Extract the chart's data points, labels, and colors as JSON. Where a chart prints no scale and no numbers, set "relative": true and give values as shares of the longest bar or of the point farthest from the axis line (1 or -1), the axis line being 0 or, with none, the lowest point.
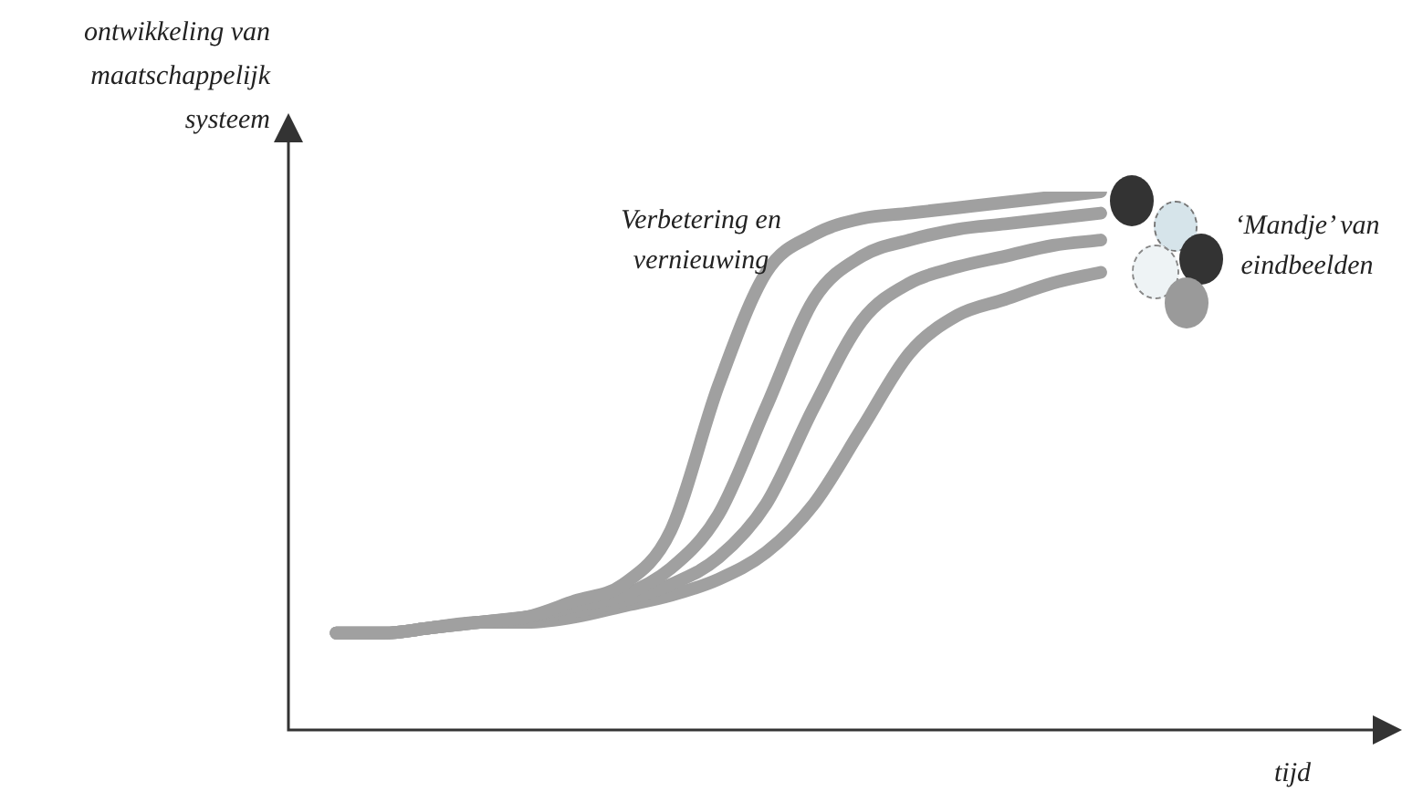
{
  "chart_data": {
    "type": "line",
    "relative": true,
    "ylabel": "ontwikkeling van maatschappelijk systeem",
    "xlabel": "tijd",
    "annotations": [
      "Verbetering en vernieuwing",
      "‘Mandje’ van eindbeelden"
    ],
    "categories": [
      null,
      null,
      null,
      null,
      null,
      null,
      null,
      null,
      null,
      null,
      null,
      null,
      null,
      null,
      null,
      null,
      null,
      null,
      null,
      null,
      null,
      null,
      null,
      null
    ],
    "series": [
      {
        "color": "#a0a0a0",
        "values": [
          null,
          0.18,
          0.18,
          0.19,
          0.2,
          0.21,
          0.24,
          0.27,
          0.37,
          0.64,
          0.85,
          0.92,
          0.95,
          0.96,
          0.97,
          0.98,
          0.99,
          1,
          null,
          null,
          null,
          null,
          null,
          null
        ]
      },
      {
        "color": "#a0a0a0",
        "values": [
          null,
          0.18,
          0.18,
          0.19,
          0.2,
          0.21,
          0.23,
          0.25,
          0.3,
          0.4,
          0.6,
          0.8,
          0.88,
          0.91,
          0.93,
          0.94,
          0.95,
          0.96,
          null,
          null,
          null,
          null,
          null,
          null
        ]
      },
      {
        "color": "#a0a0a0",
        "values": [
          null,
          0.18,
          0.18,
          0.19,
          0.2,
          0.21,
          0.22,
          0.24,
          0.27,
          0.32,
          0.42,
          0.6,
          0.76,
          0.83,
          0.86,
          0.88,
          0.9,
          0.91,
          null,
          null,
          null,
          null,
          null,
          null
        ]
      },
      {
        "color": "#a0a0a0",
        "values": [
          null,
          0.18,
          0.18,
          0.19,
          0.2,
          0.2,
          0.21,
          0.23,
          0.25,
          0.28,
          0.33,
          0.42,
          0.56,
          0.7,
          0.77,
          0.8,
          0.83,
          0.85,
          null,
          null,
          null,
          null,
          null,
          null
        ]
      }
    ],
    "legend": false
  }
}
